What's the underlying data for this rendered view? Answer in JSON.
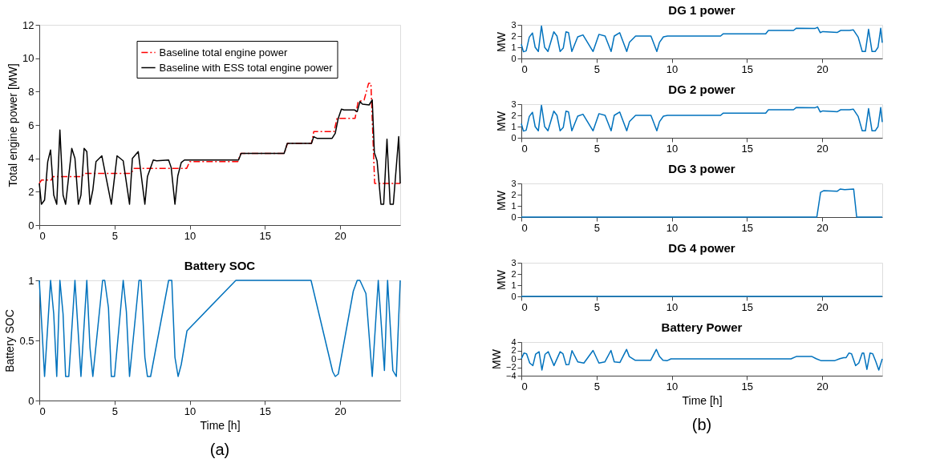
{
  "chart_data": [
    {
      "type": "line",
      "ylabel": "Total engine power [MW]",
      "xlim": [
        0,
        24
      ],
      "xticks": [
        0,
        5,
        10,
        15,
        20
      ],
      "ylim": [
        0,
        12
      ],
      "yticks": [
        0,
        2,
        4,
        6,
        8,
        10,
        12
      ],
      "grid": false,
      "legend": "top",
      "series": [
        {
          "name": "Baseline total engine power",
          "color": "#ff0000",
          "line_style": "dashed",
          "x": [
            0,
            0.15,
            0.8,
            0.9,
            2.8,
            3.0,
            6.1,
            6.3,
            9.8,
            10.0,
            13.2,
            13.4,
            16.3,
            16.5,
            18.1,
            18.25,
            19.6,
            19.8,
            21.0,
            21.2,
            21.6,
            21.9,
            22.05,
            22.3,
            24
          ],
          "values": [
            2.5,
            2.7,
            2.7,
            2.9,
            2.9,
            3.1,
            3.1,
            3.4,
            3.4,
            3.8,
            3.8,
            4.3,
            4.3,
            4.9,
            4.9,
            5.6,
            5.6,
            6.4,
            6.4,
            7.4,
            7.5,
            8.5,
            8.5,
            2.5,
            2.5
          ]
        },
        {
          "name": "Baseline with ESS total engine power",
          "color": "#000000",
          "line_style": "solid",
          "x": [
            0,
            0.14,
            0.35,
            0.56,
            0.75,
            0.96,
            1.16,
            1.37,
            1.58,
            1.75,
            2.16,
            2.37,
            2.6,
            2.77,
            2.98,
            3.16,
            3.37,
            3.56,
            3.77,
            4.16,
            4.79,
            5.17,
            5.58,
            6.0,
            6.19,
            6.58,
            7.02,
            7.19,
            7.58,
            7.8,
            8.6,
            8.77,
            9.02,
            9.21,
            9.44,
            9.65,
            13.25,
            13.42,
            16.28,
            16.49,
            18.1,
            18.25,
            18.46,
            19.47,
            19.68,
            19.88,
            20.09,
            20.26,
            20.96,
            21.14,
            21.32,
            21.49,
            21.93,
            22.14,
            22.28,
            22.46,
            22.72,
            22.9,
            23.12,
            23.33,
            23.54,
            23.9,
            24
          ],
          "values": [
            2.5,
            1.25,
            1.5,
            3.8,
            4.5,
            1.8,
            1.25,
            5.7,
            1.8,
            1.25,
            4.6,
            4.0,
            1.25,
            1.8,
            4.6,
            4.4,
            1.25,
            2.1,
            3.8,
            4.15,
            1.25,
            4.15,
            3.85,
            1.25,
            4.0,
            4.4,
            1.25,
            2.9,
            3.9,
            3.85,
            3.9,
            3.45,
            1.25,
            2.95,
            3.75,
            3.9,
            3.9,
            4.3,
            4.3,
            4.9,
            4.9,
            5.3,
            5.2,
            5.2,
            5.5,
            6.4,
            6.95,
            6.9,
            6.9,
            6.8,
            7.4,
            7.25,
            7.2,
            7.5,
            4.35,
            3.85,
            1.25,
            1.25,
            5.15,
            1.25,
            1.25,
            5.3,
            2.5
          ]
        }
      ]
    },
    {
      "type": "line",
      "title": "Battery SOC",
      "xlabel": "Time [h]",
      "ylabel": "Battery SOC",
      "xlim": [
        0,
        24
      ],
      "xticks": [
        0,
        5,
        10,
        15,
        20
      ],
      "ylim": [
        0,
        1
      ],
      "yticks": [
        0,
        0.5,
        1
      ],
      "grid": false,
      "annotations": [
        "(a)"
      ],
      "series": [
        {
          "color": "#0072bd",
          "x": [
            0,
            0.35,
            0.75,
            0.96,
            1.16,
            1.37,
            1.58,
            1.75,
            1.96,
            2.37,
            2.77,
            3.16,
            3.37,
            3.56,
            4.21,
            4.35,
            4.6,
            4.79,
            5.0,
            5.58,
            5.79,
            6.0,
            6.63,
            6.77,
            7.02,
            7.19,
            7.4,
            8.6,
            8.81,
            9.02,
            9.23,
            9.44,
            9.82,
            13.07,
            18.07,
            19.51,
            19.68,
            19.88,
            20.88,
            21.14,
            21.32,
            21.72,
            22.14,
            22.54,
            22.95,
            23.16,
            23.51,
            23.74,
            24
          ],
          "values": [
            1,
            0.2,
            1,
            0.72,
            0.2,
            1,
            0.72,
            0.2,
            0.2,
            1,
            0.2,
            1,
            0.44,
            0.2,
            1,
            1,
            0.77,
            0.2,
            0.2,
            1,
            0.74,
            0.2,
            1,
            1,
            0.36,
            0.2,
            0.2,
            1,
            1,
            0.36,
            0.2,
            0.3,
            0.58,
            1,
            1,
            0.24,
            0.2,
            0.22,
            0.91,
            1,
            1,
            0.89,
            0.2,
            1,
            0.25,
            1,
            0.25,
            0.2,
            1
          ]
        }
      ]
    },
    {
      "type": "line",
      "title": "DG 1 power",
      "ylabel": "MW",
      "xlim": [
        0,
        24
      ],
      "xticks": [
        0,
        5,
        10,
        15,
        20
      ],
      "ylim": [
        0,
        3
      ],
      "yticks": [
        0,
        1,
        2,
        3
      ],
      "grid": false,
      "series": [
        {
          "color": "#0072bd",
          "x": [
            0,
            0.14,
            0.32,
            0.53,
            0.74,
            0.92,
            1.13,
            1.34,
            1.55,
            1.77,
            2.16,
            2.37,
            2.58,
            2.79,
            2.97,
            3.14,
            3.36,
            3.75,
            4.1,
            4.77,
            5.16,
            5.57,
            5.97,
            6.18,
            6.54,
            7.01,
            7.19,
            7.6,
            8.62,
            9.01,
            9.19,
            9.45,
            9.72,
            13.25,
            13.43,
            16.25,
            16.43,
            18.1,
            18.29,
            19.52,
            19.7,
            19.88,
            20.05,
            21.02,
            21.24,
            21.82,
            22.08,
            22.4,
            22.67,
            22.88,
            23.09,
            23.32,
            23.53,
            23.72,
            23.9,
            24
          ],
          "values": [
            1.27,
            0.6,
            0.67,
            1.9,
            2.27,
            1.0,
            0.62,
            2.9,
            1.0,
            0.62,
            2.38,
            2.0,
            0.62,
            0.93,
            2.38,
            2.3,
            0.62,
            1.93,
            2.1,
            0.62,
            2.15,
            2.0,
            0.62,
            2.0,
            2.3,
            0.62,
            1.44,
            2.0,
            2.0,
            0.62,
            1.44,
            1.93,
            2.0,
            2.0,
            2.2,
            2.2,
            2.5,
            2.5,
            2.7,
            2.67,
            2.78,
            2.3,
            2.4,
            2.33,
            2.5,
            2.5,
            2.55,
            1.9,
            0.62,
            0.62,
            2.6,
            0.62,
            0.62,
            1.0,
            2.7,
            1.4
          ]
        }
      ]
    },
    {
      "type": "line",
      "title": "DG 2 power",
      "ylabel": "MW",
      "xlim": [
        0,
        24
      ],
      "xticks": [
        0,
        5,
        10,
        15,
        20
      ],
      "ylim": [
        0,
        3
      ],
      "yticks": [
        0,
        1,
        2,
        3
      ],
      "grid": false,
      "series": [
        {
          "color": "#0072bd",
          "x": [
            0,
            0.14,
            0.32,
            0.53,
            0.74,
            0.92,
            1.13,
            1.34,
            1.55,
            1.77,
            2.16,
            2.37,
            2.58,
            2.79,
            2.97,
            3.14,
            3.36,
            3.75,
            4.1,
            4.77,
            5.16,
            5.57,
            5.97,
            6.18,
            6.54,
            7.01,
            7.19,
            7.6,
            8.62,
            9.01,
            9.19,
            9.45,
            9.72,
            13.25,
            13.43,
            16.25,
            16.43,
            18.1,
            18.29,
            19.52,
            19.7,
            19.88,
            20.05,
            21.02,
            21.24,
            21.82,
            22.08,
            22.4,
            22.67,
            22.88,
            23.09,
            23.32,
            23.53,
            23.72,
            23.9,
            24
          ],
          "values": [
            1.27,
            0.6,
            0.67,
            1.9,
            2.27,
            1.0,
            0.62,
            2.9,
            1.0,
            0.62,
            2.38,
            2.0,
            0.62,
            0.93,
            2.38,
            2.3,
            0.62,
            1.93,
            2.1,
            0.62,
            2.15,
            2.0,
            0.62,
            2.0,
            2.3,
            0.62,
            1.44,
            2.0,
            2.0,
            0.62,
            1.44,
            1.93,
            2.0,
            2.0,
            2.2,
            2.2,
            2.5,
            2.5,
            2.7,
            2.67,
            2.78,
            2.3,
            2.4,
            2.33,
            2.5,
            2.5,
            2.55,
            1.9,
            0.62,
            0.62,
            2.6,
            0.62,
            0.62,
            1.0,
            2.7,
            1.4
          ]
        }
      ]
    },
    {
      "type": "line",
      "title": "DG 3 power",
      "ylabel": "MW",
      "xlim": [
        0,
        24
      ],
      "xticks": [
        0,
        5,
        10,
        15,
        20
      ],
      "ylim": [
        0,
        3
      ],
      "yticks": [
        0,
        1,
        2,
        3
      ],
      "grid": false,
      "series": [
        {
          "color": "#0072bd",
          "x": [
            0,
            19.65,
            19.9,
            20.1,
            21.0,
            21.2,
            21.5,
            22.1,
            22.3,
            24
          ],
          "values": [
            0,
            0,
            2.2,
            2.35,
            2.3,
            2.5,
            2.45,
            2.5,
            0,
            0
          ]
        }
      ]
    },
    {
      "type": "line",
      "title": "DG 4 power",
      "ylabel": "MW",
      "xlim": [
        0,
        24
      ],
      "xticks": [
        0,
        5,
        10,
        15,
        20
      ],
      "ylim": [
        0,
        3
      ],
      "yticks": [
        0,
        1,
        2,
        3
      ],
      "grid": false,
      "series": [
        {
          "color": "#0072bd",
          "x": [
            0,
            24
          ],
          "values": [
            0,
            0
          ]
        }
      ]
    },
    {
      "type": "line",
      "title": "Battery Power",
      "xlabel": "Time [h]",
      "ylabel": "MW",
      "xlim": [
        0,
        24
      ],
      "xticks": [
        0,
        5,
        10,
        15,
        20
      ],
      "ylim": [
        -4,
        4
      ],
      "yticks": [
        -4,
        -2,
        0,
        2,
        4
      ],
      "grid": false,
      "annotations": [
        "(b)"
      ],
      "series": [
        {
          "color": "#0072bd",
          "x": [
            0,
            0.18,
            0.35,
            0.56,
            0.77,
            0.95,
            1.18,
            1.37,
            1.58,
            1.79,
            2.17,
            2.58,
            2.77,
            2.98,
            3.16,
            3.37,
            3.75,
            4.16,
            4.77,
            5.16,
            5.56,
            5.96,
            6.18,
            6.56,
            7.0,
            7.18,
            7.58,
            8.6,
            8.98,
            9.19,
            9.42,
            9.68,
            9.95,
            17.93,
            18.28,
            19.33,
            19.6,
            19.95,
            20.82,
            21.18,
            21.44,
            21.6,
            21.79,
            21.96,
            22.23,
            22.44,
            22.67,
            22.77,
            22.98,
            23.19,
            23.37,
            23.58,
            23.77,
            24
          ],
          "values": [
            0,
            1.4,
            1.2,
            -1.0,
            -1.6,
            1.1,
            1.7,
            -2.65,
            1.1,
            1.7,
            -1.6,
            1.7,
            1.2,
            -1.4,
            -1.35,
            1.95,
            -0.7,
            -1.0,
            2.0,
            -1.0,
            -0.7,
            2.0,
            -0.7,
            -0.85,
            2.25,
            0.55,
            -0.35,
            -0.35,
            2.25,
            0.55,
            -0.35,
            -0.45,
            0,
            0,
            0.55,
            0.55,
            0.05,
            -0.45,
            -0.45,
            0.05,
            0.3,
            0.3,
            1.4,
            1.2,
            -1.6,
            -1.0,
            1.4,
            1.4,
            -2.5,
            1.4,
            1.2,
            -0.7,
            -2.65,
            0
          ]
        }
      ]
    }
  ]
}
